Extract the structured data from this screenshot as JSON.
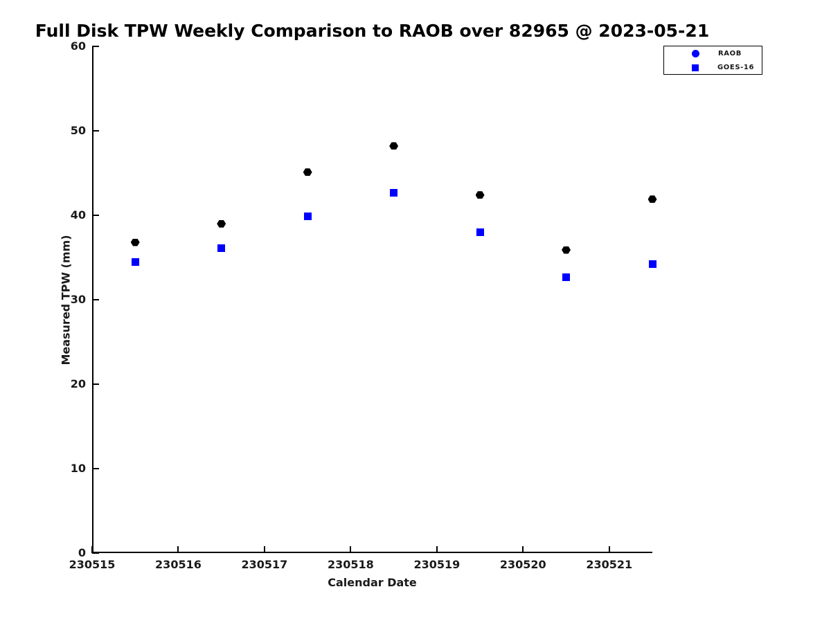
{
  "chart_data": {
    "type": "scatter",
    "title": "Full Disk TPW Weekly Comparison to RAOB over 82965 @ 2023-05-21",
    "xlabel": "Calendar Date",
    "ylabel": "Measured TPW (mm)",
    "xlim": [
      230515,
      230521.5
    ],
    "ylim": [
      0,
      60
    ],
    "x_ticks": [
      "230515",
      "230516",
      "230517",
      "230518",
      "230519",
      "230520",
      "230521"
    ],
    "y_ticks": [
      "0",
      "10",
      "20",
      "30",
      "40",
      "50",
      "60"
    ],
    "grid": false,
    "legend_position": "top-right",
    "x": [
      230515.5,
      230516.5,
      230517.5,
      230518.5,
      230519.5,
      230520.5,
      230521.5
    ],
    "series": [
      {
        "name": "RAOB",
        "marker": "hexagon",
        "plot_color": "#000000",
        "legend_color": "#0000ff",
        "values": [
          36.8,
          39.0,
          45.1,
          48.2,
          42.4,
          35.9,
          41.9
        ]
      },
      {
        "name": "GOES-16",
        "marker": "square",
        "plot_color": "#0000ff",
        "legend_color": "#0000ff",
        "values": [
          34.5,
          36.1,
          39.9,
          42.7,
          38.0,
          32.7,
          34.2
        ]
      }
    ]
  }
}
